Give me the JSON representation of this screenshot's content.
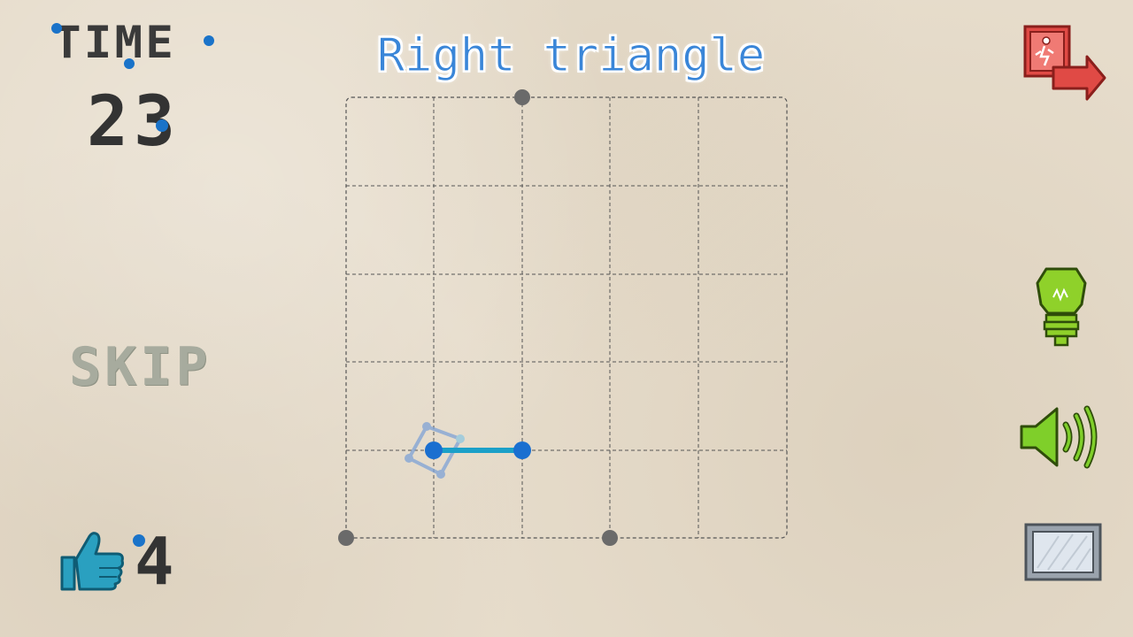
{
  "timer": {
    "label": "TIME",
    "value": "23"
  },
  "puzzle": {
    "title": "Right triangle"
  },
  "skip": {
    "label": "SKIP"
  },
  "likes": {
    "count": "4"
  },
  "icons": {
    "exit": "exit-door-icon",
    "hint": "lightbulb-icon",
    "sound": "speaker-icon",
    "screen": "frame-icon",
    "like": "thumbs-up-icon"
  },
  "colors": {
    "title": "#3a86d8",
    "accent": "#1a73c9",
    "segment": "#1ba0c8",
    "grid_anchor": "#6a6a6a",
    "exit": "#e04a45",
    "hint": "#8fd12a",
    "sound": "#7fcf2a",
    "like": "#2aa0c0"
  }
}
